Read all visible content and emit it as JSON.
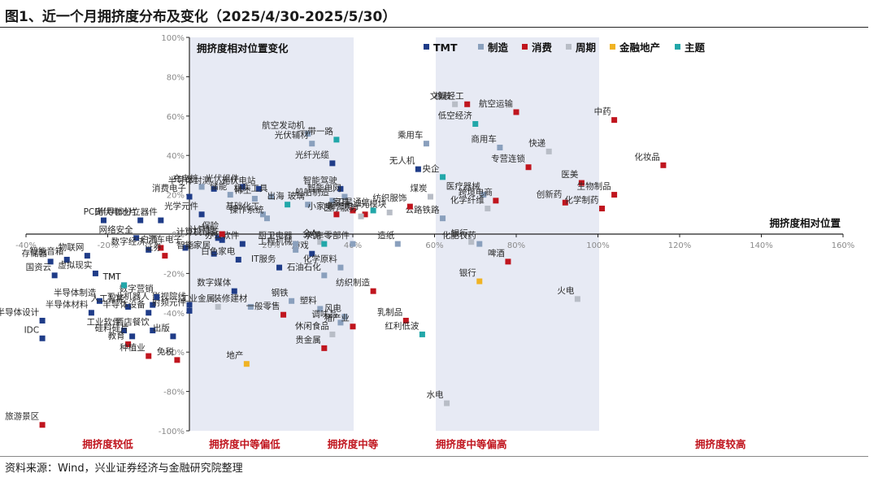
{
  "title": "图1、近一个月拥挤度分布及变化（2025/4/30-2025/5/30）",
  "source": "资料来源：Wind，兴业证券经济与金融研究院整理",
  "chart_data": {
    "type": "scatter",
    "x_axis_title": "拥挤度相对位置",
    "y_axis_title": "拥挤度相对位置变化",
    "xlim": [
      -40,
      160
    ],
    "ylim": [
      -100,
      100
    ],
    "x_ticks": [
      "-40%",
      "-20%",
      "0%",
      "20%",
      "40%",
      "60%",
      "80%",
      "100%",
      "120%",
      "140%",
      "160%"
    ],
    "y_ticks": [
      "100%",
      "80%",
      "60%",
      "40%",
      "20%",
      "0%",
      "-20%",
      "-40%",
      "-60%",
      "-80%",
      "-100%"
    ],
    "zones": [
      "拥挤度较低",
      "拥挤度中等偏低",
      "拥挤度中等",
      "拥挤度中等偏高",
      "拥挤度较高"
    ],
    "series": [
      {
        "name": "TMT",
        "color": "#1f3c88",
        "points": [
          {
            "label": "PCB",
            "x": -21,
            "y": 7
          },
          {
            "label": "光伏电池片",
            "x": -12,
            "y": 7
          },
          {
            "label": "半导体分立器件",
            "x": -7,
            "y": 7
          },
          {
            "label": "消费电子",
            "x": 0,
            "y": 19
          },
          {
            "label": "光学元件",
            "x": 3,
            "y": 10
          },
          {
            "label": "网络安全",
            "x": -13,
            "y": -2
          },
          {
            "label": "数字经济",
            "x": -10,
            "y": -8
          },
          {
            "label": "汽车电子",
            "x": -1,
            "y": -7
          },
          {
            "label": "存储器",
            "x": -34,
            "y": -14
          },
          {
            "label": "智能音箱",
            "x": -30,
            "y": -13
          },
          {
            "label": "物联网",
            "x": -25,
            "y": -11
          },
          {
            "label": "国资云",
            "x": -33,
            "y": -21
          },
          {
            "label": "虚拟现实",
            "x": -23,
            "y": -20
          },
          {
            "label": "TMT",
            "x": -16,
            "y": -26
          },
          {
            "label": "半导体制造",
            "x": -22,
            "y": -34
          },
          {
            "label": "人工智能",
            "x": -15,
            "y": -37
          },
          {
            "label": "工业机器人",
            "x": -9,
            "y": -36
          },
          {
            "label": "半导体设计",
            "x": -36,
            "y": -44
          },
          {
            "label": "半导体材料",
            "x": -24,
            "y": -40
          },
          {
            "label": "半导体设备",
            "x": -10,
            "y": -40
          },
          {
            "label": "工业软件",
            "x": -16,
            "y": -49
          },
          {
            "label": "IDC",
            "x": -36,
            "y": -53
          },
          {
            "label": "硅料硅片",
            "x": -14,
            "y": -52
          },
          {
            "label": "酒店餐饮",
            "x": -9,
            "y": -49
          },
          {
            "label": "出版",
            "x": -4,
            "y": -52
          },
          {
            "label": "计算机设备",
            "x": 8,
            "y": -3
          },
          {
            "label": "智能家居",
            "x": 6,
            "y": -10
          },
          {
            "label": "影视院线",
            "x": 0,
            "y": -36
          },
          {
            "label": "射频元件",
            "x": 0,
            "y": -39
          },
          {
            "label": "数字媒体",
            "x": 11,
            "y": -29
          },
          {
            "label": "IT服务",
            "x": 22,
            "y": -17
          },
          {
            "label": "游戏",
            "x": 30,
            "y": -10
          },
          {
            "label": "光伏组件",
            "x": 13,
            "y": 24
          },
          {
            "label": "半导体封测",
            "x": 6,
            "y": 23
          },
          {
            "label": "光伏电站",
            "x": 17,
            "y": 23
          },
          {
            "label": "光纤光缆",
            "x": 35,
            "y": 36
          },
          {
            "label": "智能驾驶",
            "x": 37,
            "y": 23
          },
          {
            "label": "无人机",
            "x": 56,
            "y": 33
          },
          {
            "label": "数字营销",
            "x": -8,
            "y": -32
          },
          {
            "label": "计算机",
            "x": 7,
            "y": -2
          },
          {
            "label": "办公软件",
            "x": 13,
            "y": -5
          },
          {
            "label": "白色家电",
            "x": 12,
            "y": -13
          }
        ]
      },
      {
        "name": "制造",
        "color": "#8aa0bd",
        "points": [
          {
            "label": "航空发动机",
            "x": 29,
            "y": 51
          },
          {
            "label": "光伏辅材",
            "x": 30,
            "y": 46
          },
          {
            "label": "充电桩",
            "x": 3,
            "y": 24
          },
          {
            "label": "储能",
            "x": 10,
            "y": 20
          },
          {
            "label": "稀土",
            "x": 16,
            "y": 18
          },
          {
            "label": "机床工具",
            "x": 20,
            "y": 19
          },
          {
            "label": "玻璃",
            "x": 29,
            "y": 15
          },
          {
            "label": "智能电网",
            "x": 38,
            "y": 19
          },
          {
            "label": "船舶制造",
            "x": 35,
            "y": 17
          },
          {
            "label": "商用车",
            "x": 76,
            "y": 44
          },
          {
            "label": "乘用车",
            "x": 58,
            "y": 46
          },
          {
            "label": "医疗器械",
            "x": 72,
            "y": 20
          },
          {
            "label": "公路铁路",
            "x": 62,
            "y": 8
          },
          {
            "label": "化肥农药",
            "x": 71,
            "y": -5
          },
          {
            "label": "造纸",
            "x": 51,
            "y": -5
          },
          {
            "label": "汽车零部件",
            "x": 40,
            "y": -5
          },
          {
            "label": "化学原料",
            "x": 37,
            "y": -17
          },
          {
            "label": "石油石化",
            "x": 33,
            "y": -21
          },
          {
            "label": "厨卫电器",
            "x": 26,
            "y": -5
          },
          {
            "label": "工程机械",
            "x": 26,
            "y": -8
          },
          {
            "label": "装修建材",
            "x": 15,
            "y": -37
          },
          {
            "label": "钢铁",
            "x": 25,
            "y": -34
          },
          {
            "label": "塑料",
            "x": 32,
            "y": -38
          },
          {
            "label": "风电",
            "x": 38,
            "y": -42
          },
          {
            "label": "基础化工",
            "x": 18,
            "y": 10
          },
          {
            "label": "操作系统",
            "x": 19,
            "y": 8
          },
          {
            "label": "调味品",
            "x": 37,
            "y": -45
          }
        ]
      },
      {
        "name": "消费",
        "color": "#c0151e",
        "points": [
          {
            "label": "中药",
            "x": 104,
            "y": 58
          },
          {
            "label": "文娱轻工",
            "x": 68,
            "y": 66
          },
          {
            "label": "航空运输",
            "x": 80,
            "y": 62
          },
          {
            "label": "化妆品",
            "x": 116,
            "y": 35
          },
          {
            "label": "专营连锁",
            "x": 83,
            "y": 34
          },
          {
            "label": "医美",
            "x": 96,
            "y": 26
          },
          {
            "label": "生物制品",
            "x": 104,
            "y": 20
          },
          {
            "label": "创新药",
            "x": 92,
            "y": 16
          },
          {
            "label": "化学制药",
            "x": 101,
            "y": 13
          },
          {
            "label": "跨境电商",
            "x": 75,
            "y": 17
          },
          {
            "label": "纺织服饰",
            "x": 54,
            "y": 14
          },
          {
            "label": "家具",
            "x": 40,
            "y": 12
          },
          {
            "label": "啤酒",
            "x": 78,
            "y": -14
          },
          {
            "label": "纺织制造",
            "x": 45,
            "y": -29
          },
          {
            "label": "乳制品",
            "x": 53,
            "y": -44
          },
          {
            "label": "猪产业",
            "x": 40,
            "y": -47
          },
          {
            "label": "一般零售",
            "x": 23,
            "y": -41
          },
          {
            "label": "贵金属",
            "x": 33,
            "y": -58
          },
          {
            "label": "教育",
            "x": -15,
            "y": -56
          },
          {
            "label": "种植业",
            "x": -10,
            "y": -62
          },
          {
            "label": "免税",
            "x": -3,
            "y": -64
          },
          {
            "label": "旅游景区",
            "x": -36,
            "y": -97
          },
          {
            "label": "小家电",
            "x": 36,
            "y": 10
          },
          {
            "label": "军工电子",
            "x": 43,
            "y": 10
          },
          {
            "label": "白酒",
            "x": -7,
            "y": -7
          },
          {
            "label": "证券",
            "x": -6,
            "y": -11
          },
          {
            "label": "保险",
            "x": 8,
            "y": 0
          }
        ]
      },
      {
        "name": "周期",
        "color": "#b8bdc6",
        "points": [
          {
            "label": "橡胶",
            "x": 65,
            "y": 66
          },
          {
            "label": "快递",
            "x": 88,
            "y": 42
          },
          {
            "label": "煤炭",
            "x": 59,
            "y": 19
          },
          {
            "label": "化学纤维",
            "x": 73,
            "y": 13
          },
          {
            "label": "银行",
            "x": 69,
            "y": -4
          },
          {
            "label": "火电",
            "x": 95,
            "y": -33
          },
          {
            "label": "水电",
            "x": 63,
            "y": -86
          },
          {
            "label": "休闲食品",
            "x": 35,
            "y": -51
          },
          {
            "label": "工业金属",
            "x": 7,
            "y": -37
          },
          {
            "label": "光模块",
            "x": 49,
            "y": 11
          },
          {
            "label": "全A",
            "x": 32,
            "y": -4
          },
          {
            "label": "医疗服务",
            "x": 42,
            "y": 9
          }
        ]
      },
      {
        "name": "金融地产",
        "color": "#f0b323",
        "points": [
          {
            "label": "地产",
            "x": 14,
            "y": -66
          },
          {
            "label": "银行",
            "x": 71,
            "y": -24
          }
        ]
      },
      {
        "name": "主题",
        "color": "#22a7a9",
        "points": [
          {
            "label": "一带一路",
            "x": 36,
            "y": 48
          },
          {
            "label": "低空经济",
            "x": 70,
            "y": 56
          },
          {
            "label": "央企",
            "x": 62,
            "y": 29
          },
          {
            "label": "出海",
            "x": 24,
            "y": 15
          },
          {
            "label": "水泥",
            "x": 33,
            "y": -5
          },
          {
            "label": "卫星通信",
            "x": 45,
            "y": 12
          },
          {
            "label": "红利低波",
            "x": 57,
            "y": -51
          },
          {
            "label": "TMT",
            "x": -16,
            "y": -26
          }
        ]
      }
    ]
  }
}
